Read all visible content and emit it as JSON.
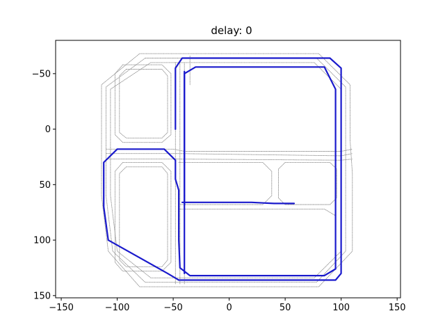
{
  "chart_data": {
    "type": "scatter",
    "title": "delay: 0",
    "xlabel": "",
    "ylabel": "",
    "xlim": [
      -155,
      153
    ],
    "ylim": [
      152,
      -80
    ],
    "y_inverted": true,
    "grid": false,
    "x_ticks": [
      -150,
      -100,
      -50,
      0,
      50,
      100,
      150
    ],
    "x_tick_labels": [
      "−150",
      "−100",
      "−50",
      "0",
      "50",
      "100",
      "150"
    ],
    "y_ticks": [
      -50,
      0,
      50,
      100,
      150
    ],
    "y_tick_labels": [
      "−50",
      "0",
      "50",
      "100",
      "150"
    ],
    "colors": {
      "background_track": "#9a9a9a",
      "trajectory": "#1a1acc"
    },
    "series": [
      {
        "role": "track-lanes",
        "color": "#9a9a9a",
        "paths": [
          [
            [
              -80,
              -68
            ],
            [
              80,
              -68
            ],
            [
              108,
              -40
            ],
            [
              108,
              10
            ],
            [
              110,
              40
            ],
            [
              110,
              110
            ],
            [
              80,
              142
            ],
            [
              -80,
              142
            ],
            [
              -108,
              110
            ],
            [
              -114,
              60
            ],
            [
              -114,
              -40
            ],
            [
              -80,
              -68
            ]
          ],
          [
            [
              -75,
              -64
            ],
            [
              78,
              -64
            ],
            [
              104,
              -38
            ],
            [
              104,
              110
            ],
            [
              78,
              138
            ],
            [
              -75,
              138
            ],
            [
              -104,
              110
            ],
            [
              -110,
              60
            ],
            [
              -110,
              -38
            ],
            [
              -75,
              -64
            ]
          ],
          [
            [
              -70,
              -60
            ],
            [
              76,
              -60
            ],
            [
              100,
              -36
            ],
            [
              100,
              110
            ],
            [
              76,
              134
            ],
            [
              -70,
              134
            ],
            [
              -100,
              110
            ],
            [
              -106,
              60
            ],
            [
              -106,
              -36
            ],
            [
              -70,
              -60
            ]
          ],
          [
            [
              -95,
              -58
            ],
            [
              -60,
              -58
            ],
            [
              -52,
              -50
            ],
            [
              -52,
              5
            ],
            [
              -60,
              12
            ],
            [
              -95,
              12
            ],
            [
              -102,
              5
            ],
            [
              -102,
              -50
            ],
            [
              -95,
              -58
            ]
          ],
          [
            [
              -92,
              -54
            ],
            [
              -60,
              -54
            ],
            [
              -55,
              -48
            ],
            [
              -55,
              3
            ],
            [
              -60,
              8
            ],
            [
              -92,
              8
            ],
            [
              -98,
              3
            ],
            [
              -98,
              -48
            ],
            [
              -92,
              -54
            ]
          ],
          [
            [
              -95,
              30
            ],
            [
              -60,
              30
            ],
            [
              -52,
              38
            ],
            [
              -52,
              120
            ],
            [
              -60,
              128
            ],
            [
              -95,
              128
            ],
            [
              -102,
              120
            ],
            [
              -102,
              38
            ],
            [
              -95,
              30
            ]
          ],
          [
            [
              -92,
              34
            ],
            [
              -60,
              34
            ],
            [
              -55,
              40
            ],
            [
              -55,
              118
            ],
            [
              -60,
              124
            ],
            [
              -92,
              124
            ],
            [
              -98,
              118
            ],
            [
              -98,
              40
            ],
            [
              -92,
              34
            ]
          ],
          [
            [
              -110,
              18
            ],
            [
              -50,
              18
            ],
            [
              -40,
              20
            ],
            [
              100,
              20
            ],
            [
              110,
              18
            ]
          ],
          [
            [
              -110,
              22
            ],
            [
              -45,
              22
            ],
            [
              100,
              24
            ],
            [
              110,
              22
            ]
          ],
          [
            [
              -110,
              27
            ],
            [
              -45,
              27
            ],
            [
              100,
              28
            ],
            [
              110,
              27
            ]
          ],
          [
            [
              -45,
              30
            ],
            [
              30,
              30
            ],
            [
              38,
              38
            ],
            [
              38,
              60
            ],
            [
              30,
              68
            ],
            [
              -45,
              68
            ]
          ],
          [
            [
              50,
              30
            ],
            [
              90,
              30
            ],
            [
              96,
              36
            ],
            [
              96,
              62
            ],
            [
              90,
              68
            ],
            [
              50,
              68
            ],
            [
              44,
              62
            ],
            [
              44,
              36
            ],
            [
              50,
              30
            ]
          ],
          [
            [
              -45,
              72
            ],
            [
              85,
              72
            ],
            [
              95,
              78
            ]
          ],
          [
            [
              -48,
              -60
            ],
            [
              -48,
              140
            ]
          ],
          [
            [
              -44,
              -60
            ],
            [
              -44,
              140
            ]
          ],
          [
            [
              -40,
              -60
            ],
            [
              -40,
              140
            ]
          ],
          [
            [
              -35,
              -66
            ],
            [
              -35,
              -40
            ]
          ]
        ]
      },
      {
        "role": "trajectory",
        "color": "#1a1acc",
        "paths": [
          [
            [
              -48,
              0
            ],
            [
              -48,
              -55
            ],
            [
              -42,
              -64
            ],
            [
              90,
              -64
            ],
            [
              100,
              -55
            ],
            [
              100,
              130
            ],
            [
              95,
              136
            ],
            [
              -45,
              136
            ],
            [
              -55,
              130
            ],
            [
              -108,
              100
            ],
            [
              -112,
              70
            ],
            [
              -112,
              30
            ],
            [
              -100,
              18
            ],
            [
              -58,
              18
            ],
            [
              -48,
              28
            ],
            [
              -48,
              45
            ],
            [
              -45,
              55
            ],
            [
              -45,
              100
            ],
            [
              -44,
              125
            ],
            [
              -35,
              132
            ],
            [
              85,
              132
            ],
            [
              95,
              126
            ],
            [
              95,
              -36
            ],
            [
              85,
              -56
            ],
            [
              -30,
              -56
            ],
            [
              -40,
              -50
            ],
            [
              -40,
              130
            ]
          ],
          [
            [
              -40,
              60
            ],
            [
              -40,
              60
            ]
          ],
          [
            [
              -42,
              66
            ],
            [
              20,
              66
            ],
            [
              40,
              67
            ],
            [
              58,
              67
            ]
          ],
          [
            [
              -40,
              -52
            ],
            [
              -40,
              68
            ]
          ]
        ]
      }
    ]
  }
}
